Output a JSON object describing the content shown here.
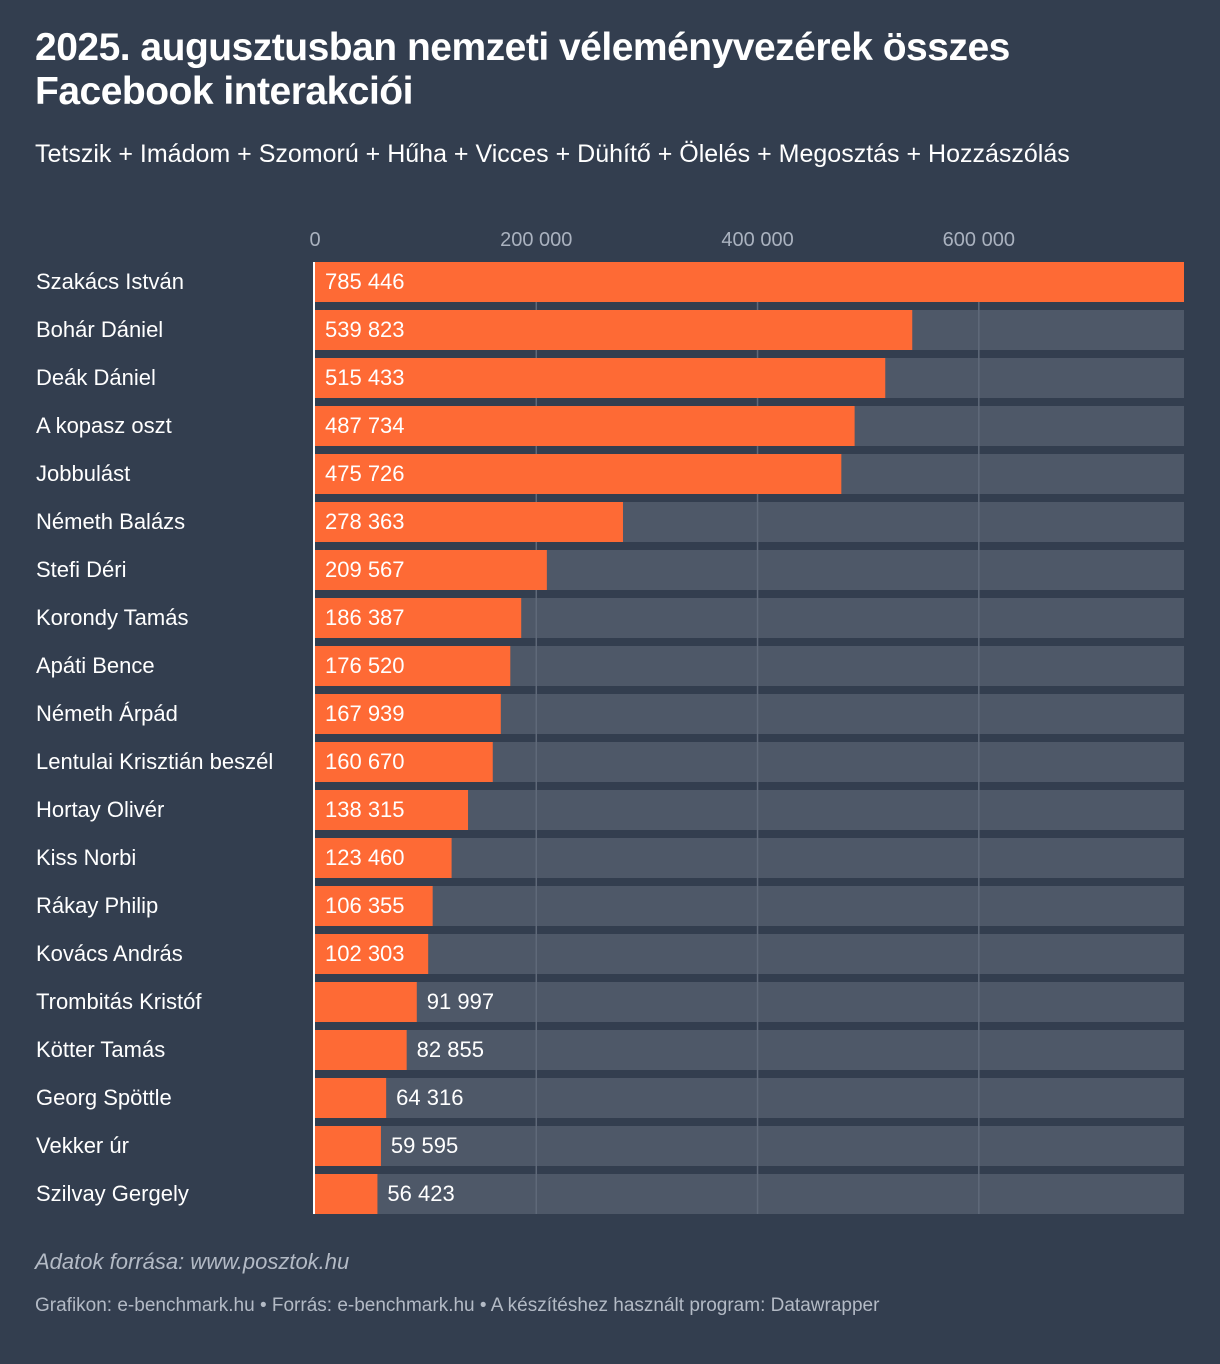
{
  "title": "2025. augusztusban nemzeti véleményvezérek összes Facebook interakciói",
  "subtitle": "Tetszik + Imádom + Szomorú + Hűha + Vicces + Dühítő + Ölelés + Megosztás + Hozzászólás",
  "notes": "Adatok forrása: www.posztok.hu",
  "footer": "Grafikon: e-benchmark.hu • Forrás: e-benchmark.hu • A készítéshez használt program: Datawrapper",
  "colors": {
    "background": "#333e4f",
    "bar": "#fe6a35",
    "bar_track": "#4e5868",
    "gridline": "#5f6979",
    "axis_text": "#aab2bf",
    "text": "#ffffff"
  },
  "chart_data": {
    "type": "bar",
    "orientation": "horizontal",
    "xlim": [
      0,
      785446
    ],
    "ticks": [
      {
        "value": 0,
        "label": "0"
      },
      {
        "value": 200000,
        "label": "200 000"
      },
      {
        "value": 400000,
        "label": "400 000"
      },
      {
        "value": 600000,
        "label": "600 000"
      }
    ],
    "bars": [
      {
        "label": "Szakács István",
        "value": 785446,
        "value_label": "785 446"
      },
      {
        "label": "Bohár Dániel",
        "value": 539823,
        "value_label": "539 823"
      },
      {
        "label": "Deák Dániel",
        "value": 515433,
        "value_label": "515 433"
      },
      {
        "label": "A kopasz oszt",
        "value": 487734,
        "value_label": "487 734"
      },
      {
        "label": "Jobbulást",
        "value": 475726,
        "value_label": "475 726"
      },
      {
        "label": "Németh Balázs",
        "value": 278363,
        "value_label": "278 363"
      },
      {
        "label": "Stefi Déri",
        "value": 209567,
        "value_label": "209 567"
      },
      {
        "label": "Korondy Tamás",
        "value": 186387,
        "value_label": "186 387"
      },
      {
        "label": "Apáti Bence",
        "value": 176520,
        "value_label": "176 520"
      },
      {
        "label": "Németh Árpád",
        "value": 167939,
        "value_label": "167 939"
      },
      {
        "label": "Lentulai Krisztián beszél",
        "value": 160670,
        "value_label": "160 670"
      },
      {
        "label": "Hortay Olivér",
        "value": 138315,
        "value_label": "138 315"
      },
      {
        "label": "Kiss Norbi",
        "value": 123460,
        "value_label": "123 460"
      },
      {
        "label": "Rákay Philip",
        "value": 106355,
        "value_label": "106 355"
      },
      {
        "label": "Kovács András",
        "value": 102303,
        "value_label": "102 303"
      },
      {
        "label": "Trombitás Kristóf",
        "value": 91997,
        "value_label": "91 997"
      },
      {
        "label": "Kötter Tamás",
        "value": 82855,
        "value_label": "82 855"
      },
      {
        "label": "Georg Spöttle",
        "value": 64316,
        "value_label": "64 316"
      },
      {
        "label": "Vekker úr",
        "value": 59595,
        "value_label": "59 595"
      },
      {
        "label": "Szilvay Gergely",
        "value": 56423,
        "value_label": "56 423"
      }
    ]
  }
}
